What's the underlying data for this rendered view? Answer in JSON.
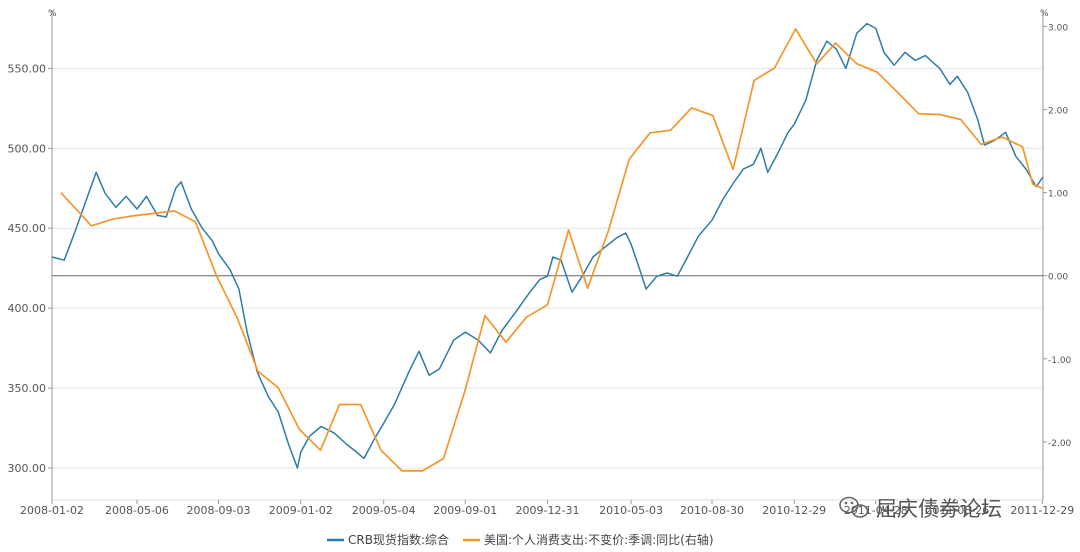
{
  "chart_data": {
    "type": "line",
    "left_unit": "%",
    "right_unit": "%",
    "x_tick_labels": [
      "2008-01-02",
      "2008-05-06",
      "2008-09-03",
      "2009-01-02",
      "2009-05-04",
      "2009-09-01",
      "2009-12-31",
      "2010-05-03",
      "2010-08-30",
      "2010-12-29",
      "2011-04-28",
      "2011-08-26",
      "2011-12-29"
    ],
    "x_ticks": [
      "2008-01-02",
      "2008-05-06",
      "2008-09-03",
      "2009-01-02",
      "2009-05-04",
      "2009-09-01",
      "2009-12-31",
      "2010-05-03",
      "2010-08-30",
      "2010-12-29",
      "2011-04-28",
      "2011-08-26",
      "2011-12-29"
    ],
    "xlim": [
      "2008-01-02",
      "2011-12-30"
    ],
    "y_left_ticks": [
      "300.00",
      "350.00",
      "400.00",
      "450.00",
      "500.00",
      "550.00"
    ],
    "y_left_lim": [
      280,
      584
    ],
    "y_right_ticks": [
      "-2.00",
      "-1.00",
      "0.00",
      "1.00",
      "2.00",
      "3.00"
    ],
    "y_right_lim": [
      -2.7,
      3.15
    ],
    "grid": "horizontal",
    "legend_position": "bottom",
    "series": [
      {
        "name": "CRB现货指数:综合",
        "axis": "left",
        "color": "#2e7ba6",
        "points": [
          [
            "2008-01-02",
            432
          ],
          [
            "2008-01-20",
            430
          ],
          [
            "2008-02-05",
            448
          ],
          [
            "2008-02-25",
            472
          ],
          [
            "2008-03-07",
            485
          ],
          [
            "2008-03-20",
            472
          ],
          [
            "2008-04-05",
            463
          ],
          [
            "2008-04-20",
            470
          ],
          [
            "2008-05-06",
            462
          ],
          [
            "2008-05-20",
            470
          ],
          [
            "2008-06-05",
            458
          ],
          [
            "2008-06-18",
            457
          ],
          [
            "2008-07-02",
            475
          ],
          [
            "2008-07-10",
            479
          ],
          [
            "2008-07-25",
            462
          ],
          [
            "2008-08-10",
            450
          ],
          [
            "2008-08-25",
            442
          ],
          [
            "2008-09-03",
            434
          ],
          [
            "2008-09-20",
            424
          ],
          [
            "2008-10-03",
            412
          ],
          [
            "2008-10-15",
            385
          ],
          [
            "2008-10-30",
            360
          ],
          [
            "2008-11-15",
            345
          ],
          [
            "2008-11-30",
            335
          ],
          [
            "2008-12-15",
            315
          ],
          [
            "2008-12-28",
            300
          ],
          [
            "2009-01-02",
            310
          ],
          [
            "2009-01-15",
            320
          ],
          [
            "2009-02-01",
            326
          ],
          [
            "2009-02-20",
            322
          ],
          [
            "2009-03-10",
            315
          ],
          [
            "2009-03-25",
            310
          ],
          [
            "2009-04-05",
            306
          ],
          [
            "2009-04-20",
            318
          ],
          [
            "2009-05-04",
            328
          ],
          [
            "2009-05-20",
            340
          ],
          [
            "2009-06-10",
            360
          ],
          [
            "2009-06-25",
            373
          ],
          [
            "2009-07-10",
            358
          ],
          [
            "2009-07-25",
            362
          ],
          [
            "2009-08-15",
            380
          ],
          [
            "2009-09-01",
            385
          ],
          [
            "2009-09-20",
            380
          ],
          [
            "2009-10-08",
            372
          ],
          [
            "2009-10-25",
            386
          ],
          [
            "2009-11-15",
            398
          ],
          [
            "2009-12-05",
            410
          ],
          [
            "2009-12-20",
            418
          ],
          [
            "2009-12-31",
            420
          ],
          [
            "2010-01-08",
            432
          ],
          [
            "2010-01-20",
            430
          ],
          [
            "2010-02-05",
            410
          ],
          [
            "2010-02-20",
            420
          ],
          [
            "2010-03-08",
            432
          ],
          [
            "2010-03-25",
            438
          ],
          [
            "2010-04-12",
            444
          ],
          [
            "2010-04-25",
            447
          ],
          [
            "2010-05-03",
            440
          ],
          [
            "2010-05-15",
            425
          ],
          [
            "2010-05-25",
            412
          ],
          [
            "2010-06-10",
            420
          ],
          [
            "2010-06-25",
            422
          ],
          [
            "2010-07-10",
            420
          ],
          [
            "2010-07-25",
            432
          ],
          [
            "2010-08-10",
            445
          ],
          [
            "2010-08-30",
            455
          ],
          [
            "2010-09-15",
            468
          ],
          [
            "2010-09-30",
            478
          ],
          [
            "2010-10-15",
            487
          ],
          [
            "2010-10-30",
            490
          ],
          [
            "2010-11-10",
            500
          ],
          [
            "2010-11-20",
            485
          ],
          [
            "2010-12-05",
            497
          ],
          [
            "2010-12-20",
            510
          ],
          [
            "2010-12-29",
            515
          ],
          [
            "2011-01-15",
            530
          ],
          [
            "2011-01-31",
            555
          ],
          [
            "2011-02-15",
            567
          ],
          [
            "2011-03-01",
            562
          ],
          [
            "2011-03-15",
            550
          ],
          [
            "2011-03-31",
            572
          ],
          [
            "2011-04-15",
            578
          ],
          [
            "2011-04-28",
            575
          ],
          [
            "2011-05-10",
            560
          ],
          [
            "2011-05-25",
            552
          ],
          [
            "2011-06-10",
            560
          ],
          [
            "2011-06-25",
            555
          ],
          [
            "2011-07-10",
            558
          ],
          [
            "2011-07-31",
            550
          ],
          [
            "2011-08-15",
            540
          ],
          [
            "2011-08-26",
            545
          ],
          [
            "2011-09-10",
            535
          ],
          [
            "2011-09-25",
            518
          ],
          [
            "2011-10-05",
            502
          ],
          [
            "2011-10-20",
            505
          ],
          [
            "2011-11-05",
            510
          ],
          [
            "2011-11-20",
            495
          ],
          [
            "2011-12-05",
            487
          ],
          [
            "2011-12-20",
            476
          ],
          [
            "2011-12-30",
            482
          ]
        ]
      },
      {
        "name": "美国:个人消费支出:不变价:季调:同比(右轴)",
        "axis": "right",
        "color": "#f5962a",
        "points": [
          [
            "2008-01-15",
            1.0
          ],
          [
            "2008-02-29",
            0.6
          ],
          [
            "2008-03-31",
            0.68
          ],
          [
            "2008-04-30",
            0.72
          ],
          [
            "2008-05-31",
            0.75
          ],
          [
            "2008-06-30",
            0.78
          ],
          [
            "2008-07-31",
            0.65
          ],
          [
            "2008-08-31",
            0.0
          ],
          [
            "2008-09-30",
            -0.5
          ],
          [
            "2008-10-31",
            -1.15
          ],
          [
            "2008-11-30",
            -1.35
          ],
          [
            "2008-12-31",
            -1.85
          ],
          [
            "2009-01-31",
            -2.1
          ],
          [
            "2009-02-28",
            -1.55
          ],
          [
            "2009-03-31",
            -1.55
          ],
          [
            "2009-04-30",
            -2.1
          ],
          [
            "2009-05-31",
            -2.35
          ],
          [
            "2009-06-30",
            -2.35
          ],
          [
            "2009-07-31",
            -2.2
          ],
          [
            "2009-08-31",
            -1.4
          ],
          [
            "2009-09-30",
            -0.48
          ],
          [
            "2009-10-31",
            -0.8
          ],
          [
            "2009-11-30",
            -0.5
          ],
          [
            "2009-12-31",
            -0.35
          ],
          [
            "2010-01-31",
            0.55
          ],
          [
            "2010-02-28",
            -0.15
          ],
          [
            "2010-03-31",
            0.55
          ],
          [
            "2010-04-30",
            1.4
          ],
          [
            "2010-05-31",
            1.72
          ],
          [
            "2010-06-30",
            1.75
          ],
          [
            "2010-07-31",
            2.02
          ],
          [
            "2010-08-31",
            1.93
          ],
          [
            "2010-09-30",
            1.28
          ],
          [
            "2010-10-31",
            2.35
          ],
          [
            "2010-11-30",
            2.5
          ],
          [
            "2010-12-31",
            2.97
          ],
          [
            "2011-01-31",
            2.55
          ],
          [
            "2011-02-28",
            2.8
          ],
          [
            "2011-03-31",
            2.55
          ],
          [
            "2011-04-30",
            2.45
          ],
          [
            "2011-05-31",
            2.2
          ],
          [
            "2011-06-30",
            1.95
          ],
          [
            "2011-07-31",
            1.94
          ],
          [
            "2011-08-31",
            1.88
          ],
          [
            "2011-09-30",
            1.58
          ],
          [
            "2011-10-31",
            1.67
          ],
          [
            "2011-11-30",
            1.55
          ],
          [
            "2011-12-15",
            1.1
          ],
          [
            "2011-12-30",
            1.05
          ]
        ]
      }
    ]
  },
  "watermark": {
    "text": "屈庆债券论坛",
    "icon": "wechat-icon"
  }
}
